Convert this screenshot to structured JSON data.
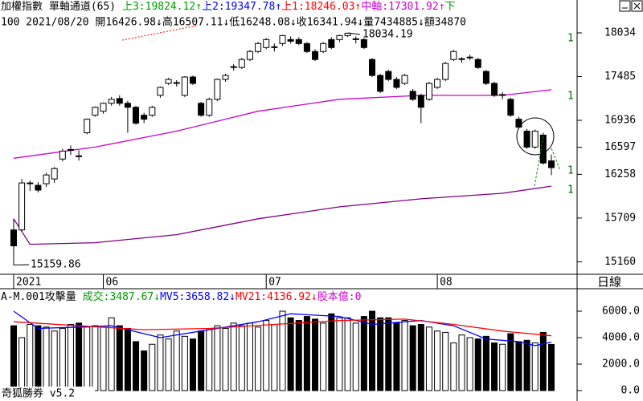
{
  "header": {
    "line1": [
      {
        "text": "加權指數 單軸通道(65) ",
        "color": "#000000"
      },
      {
        "text": "上3:19824.12↑",
        "color": "#009900"
      },
      {
        "text": "上2:19347.78↑",
        "color": "#0000ff"
      },
      {
        "text": "上1:18246.03↑",
        "color": "#ff0000"
      },
      {
        "text": "中軸:17301.92↑",
        "color": "#cc00cc"
      },
      {
        "text": "下",
        "color": "#009900"
      }
    ],
    "line2": "100 2021/08/20 開16426.98↓高16507.11↓低16248.08↓收16341.94↓量7434885↓額34870",
    "volume_line": [
      {
        "text": "A-M.001攻擊量 ",
        "color": "#000000"
      },
      {
        "text": "成交:3487.67↓",
        "color": "#009900"
      },
      {
        "text": "MV5:3658.82↓",
        "color": "#0000ff"
      },
      {
        "text": "MV21:4136.92↓",
        "color": "#ff0000"
      },
      {
        "text": "股本億:0",
        "color": "#cc00cc"
      }
    ]
  },
  "period": "日線",
  "footer": "奇狐勝券 v5.2",
  "side_marks": [
    "1",
    "1",
    "1",
    "1"
  ],
  "chart_data": [
    {
      "type": "candlestick",
      "open": [
        15560,
        15560,
        16140,
        16120,
        16140,
        16200,
        16450,
        16560,
        16490,
        16780,
        17000,
        17050,
        17150,
        17210,
        17150,
        17100,
        17000,
        17000,
        17250,
        17400,
        17400,
        17250,
        17480,
        17150,
        17000,
        17200,
        17450,
        17600,
        17600,
        17700,
        17800,
        17850,
        17850,
        17900,
        17950,
        17950,
        17900,
        17800,
        17800,
        17950,
        17950,
        18000,
        17950,
        17950,
        17700,
        17500,
        17550,
        17450,
        17400,
        17300,
        17250,
        17200,
        17350,
        17450,
        17700,
        17700,
        17720,
        17700,
        17550,
        17400,
        17250,
        17200,
        16950,
        16800,
        16600,
        16750,
        16426.98
      ],
      "high": [
        15700,
        16200,
        16180,
        16160,
        16280,
        16350,
        16580,
        16620,
        16560,
        16960,
        17110,
        17160,
        17230,
        17250,
        17180,
        17120,
        17030,
        17120,
        17360,
        17470,
        17440,
        17490,
        17500,
        17170,
        17220,
        17460,
        17520,
        17640,
        17720,
        17820,
        17920,
        17970,
        17900,
        18010,
        17990,
        17980,
        17920,
        17830,
        17920,
        17980,
        18010,
        18034.19,
        17990,
        17970,
        17720,
        17520,
        17570,
        17480,
        17520,
        17330,
        17270,
        17420,
        17470,
        17670,
        17820,
        17730,
        17760,
        17720,
        17570,
        17420,
        17290,
        17220,
        16980,
        16830,
        16820,
        16780,
        16507.11
      ],
      "low": [
        15159.86,
        15540,
        16050,
        16030,
        16100,
        16150,
        16420,
        16500,
        16430,
        16760,
        16980,
        17020,
        17120,
        17120,
        16780,
        16880,
        16900,
        16980,
        17220,
        17380,
        17360,
        17230,
        17380,
        16980,
        16980,
        17180,
        17420,
        17560,
        17580,
        17680,
        17780,
        17830,
        17800,
        17870,
        17900,
        17880,
        17780,
        17680,
        17780,
        17830,
        17920,
        17980,
        17900,
        17830,
        17480,
        17280,
        17430,
        17330,
        17380,
        17180,
        16900,
        17180,
        17330,
        17430,
        17680,
        17660,
        17690,
        17580,
        17380,
        17230,
        17200,
        16980,
        16830,
        16580,
        16580,
        16380,
        16248.08
      ],
      "close": [
        15360,
        16150,
        16150,
        16060,
        16250,
        16330,
        16550,
        16570,
        16480,
        16950,
        17100,
        17150,
        17200,
        17150,
        17100,
        16900,
        16950,
        17100,
        17350,
        17450,
        17410,
        17480,
        17400,
        17000,
        17200,
        17450,
        17500,
        17610,
        17700,
        17800,
        17900,
        17950,
        17860,
        18000,
        17930,
        17900,
        17800,
        17700,
        17900,
        17850,
        18000,
        18030,
        17960,
        17850,
        17500,
        17300,
        17450,
        17350,
        17500,
        17200,
        17100,
        17400,
        17450,
        17650,
        17800,
        17710,
        17730,
        17600,
        17400,
        17250,
        17260,
        17000,
        16850,
        16600,
        16800,
        16400,
        16341.94
      ],
      "up_color": "#ffffff",
      "down_color": "#000000",
      "series": [
        {
          "name": "上軌",
          "color": "#cc00cc",
          "x": [
            0,
            10,
            20,
            30,
            40,
            50,
            60,
            66
          ],
          "values": [
            16460,
            16600,
            16800,
            17050,
            17200,
            17250,
            17250,
            17320
          ]
        },
        {
          "name": "下軌",
          "color": "#800080",
          "x": [
            0,
            2,
            10,
            20,
            30,
            40,
            50,
            60,
            66
          ],
          "values": [
            15700,
            15380,
            15400,
            15500,
            15700,
            15850,
            15950,
            16020,
            16110
          ]
        }
      ],
      "annotations": [
        "15159.86",
        "18034.19"
      ],
      "xticks": [
        {
          "value": 0,
          "label": "2021"
        },
        {
          "value": 11,
          "label": "06"
        },
        {
          "value": 31,
          "label": "07"
        },
        {
          "value": 52,
          "label": "08"
        }
      ],
      "ylim": [
        15023,
        18447
      ],
      "yticks": [
        18034,
        17485,
        16936,
        16597,
        16258,
        15709,
        15160
      ]
    },
    {
      "type": "bar",
      "values": [
        4900,
        4000,
        5000,
        4900,
        4800,
        4500,
        4700,
        5000,
        5100,
        4800,
        4900,
        4800,
        5500,
        4900,
        4700,
        3700,
        3000,
        3500,
        4200,
        3900,
        4500,
        4100,
        3900,
        4500,
        4600,
        4900,
        4700,
        5100,
        4900,
        5100,
        4800,
        5300,
        5000,
        6000,
        5500,
        5300,
        5600,
        5400,
        5100,
        5800,
        5500,
        5500,
        5100,
        5600,
        6000,
        5500,
        5500,
        5100,
        5300,
        4900,
        5000,
        4800,
        4500,
        4400,
        3600,
        4200,
        4000,
        3900,
        4100,
        3600,
        3500,
        4300,
        3700,
        3800,
        3600,
        4400,
        3487.67
      ],
      "series": [
        {
          "name": "MV5",
          "color": "#0000ff",
          "x": [
            0,
            3,
            8,
            12,
            18,
            24,
            30,
            34,
            40,
            44,
            50,
            54,
            58,
            62,
            64,
            66
          ],
          "values": [
            6000,
            4700,
            4800,
            4900,
            4000,
            4600,
            5200,
            5800,
            5600,
            5000,
            5300,
            4900,
            3900,
            3700,
            3400,
            3658.82
          ]
        },
        {
          "name": "MV21",
          "color": "#ff0000",
          "x": [
            0,
            8,
            16,
            24,
            32,
            40,
            48,
            54,
            60,
            66
          ],
          "values": [
            5200,
            4900,
            4600,
            4700,
            5000,
            5300,
            5400,
            5000,
            4500,
            4136.92
          ]
        }
      ],
      "ylim": [
        -788,
        7576
      ],
      "yticks": [
        {
          "value": 6000,
          "label": "6000.0"
        },
        {
          "value": 4000,
          "label": "4000.0"
        },
        {
          "value": 2000,
          "label": "2000.0"
        },
        {
          "value": 0,
          "label": "0.0"
        }
      ]
    }
  ]
}
